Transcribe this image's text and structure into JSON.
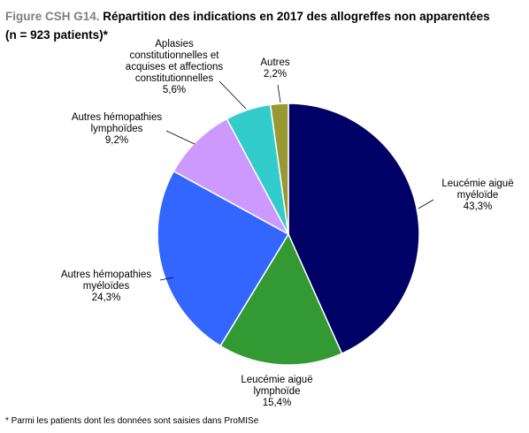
{
  "title": {
    "label": "Figure CSH G14.",
    "line1": "Répartition des indications en 2017 des allogreffes non apparentées",
    "line2": "(n = 923 patients)*"
  },
  "footnote": "* Parmi les patients dont les données sont saisies dans ProMISe",
  "chart_data": {
    "type": "pie",
    "title": "Répartition des indications en 2017 des allogreffes non apparentées (n = 923 patients)*",
    "start": "12 o'clock, clockwise",
    "slices": [
      {
        "name": "Leucémie aiguë myéloïde",
        "lines": [
          "Leucémie aiguë",
          "myéloïde",
          "43,3%"
        ],
        "value": 43.3,
        "color": "#000066"
      },
      {
        "name": "Leucémie aiguë lymphoïde",
        "lines": [
          "Leucémie aiguë",
          "lymphoïde",
          "15,4%"
        ],
        "value": 15.4,
        "color": "#339933"
      },
      {
        "name": "Autres hémopathies myéloïdes",
        "lines": [
          "Autres hémopathies",
          "myéloïdes",
          "24,3%"
        ],
        "value": 24.3,
        "color": "#3366ff"
      },
      {
        "name": "Autres hémopathies lymphoïdes",
        "lines": [
          "Autres hémopathies",
          "lymphoïdes",
          "9,2%"
        ],
        "value": 9.2,
        "color": "#cc99ff"
      },
      {
        "name": "Aplasies constitutionnelles et acquises et affections constitutionnelles",
        "lines": [
          "Aplasies",
          "constitutionnelles et",
          "acquises et affections",
          "constitutionnelles",
          "5,6%"
        ],
        "value": 5.6,
        "color": "#33cccc"
      },
      {
        "name": "Autres",
        "lines": [
          "Autres",
          "2,2%"
        ],
        "value": 2.2,
        "color": "#999933"
      }
    ]
  }
}
